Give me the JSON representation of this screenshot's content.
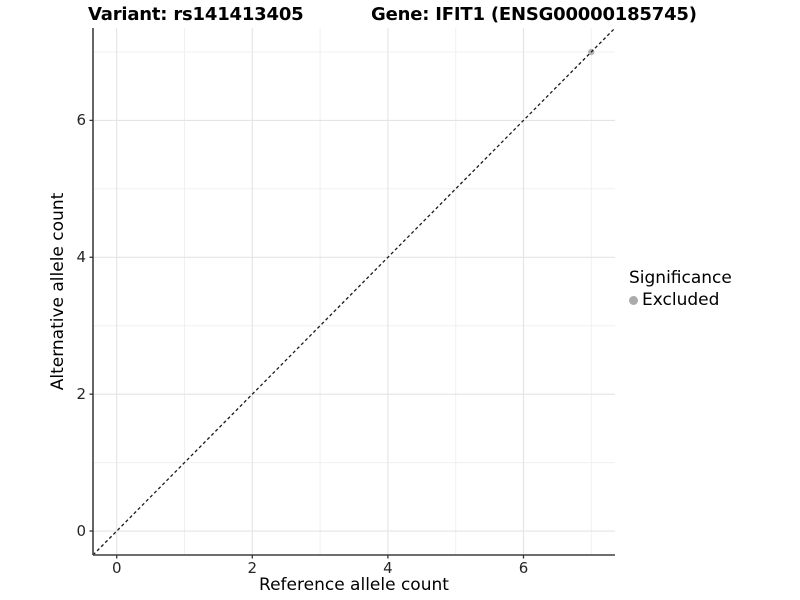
{
  "chart_data": {
    "type": "scatter",
    "title_left": "Variant: rs141413405",
    "title_right": "Gene: IFIT1 (ENSG00000185745)",
    "xlabel": "Reference allele count",
    "ylabel": "Alternative allele count",
    "xlim": [
      -0.35,
      7.35
    ],
    "ylim": [
      -0.35,
      7.35
    ],
    "xticks": [
      0,
      2,
      4,
      6
    ],
    "yticks": [
      0,
      2,
      4,
      6
    ],
    "x_minor_gridlines": [
      1,
      3,
      5,
      7
    ],
    "y_minor_gridlines": [
      1,
      3,
      5,
      7
    ],
    "grid": "on",
    "reference_line": {
      "type": "identity",
      "slope": 1,
      "intercept": 0,
      "style": "dashed",
      "color": "#1a1a1a"
    },
    "series": [
      {
        "name": "Excluded",
        "color": "#b5b5b5",
        "points": [
          [
            7,
            7
          ]
        ]
      }
    ],
    "legend": {
      "title": "Significance",
      "position": "right",
      "entries": [
        {
          "label": "Excluded",
          "color": "#ababab"
        }
      ]
    }
  },
  "colors": {
    "background": "#ffffff",
    "grid_major": "#e4e4e4",
    "grid_minor": "#f0f0f0",
    "axis_line": "#3f3f3f",
    "tick_mark": "#333333",
    "tick_text": "#262626"
  }
}
